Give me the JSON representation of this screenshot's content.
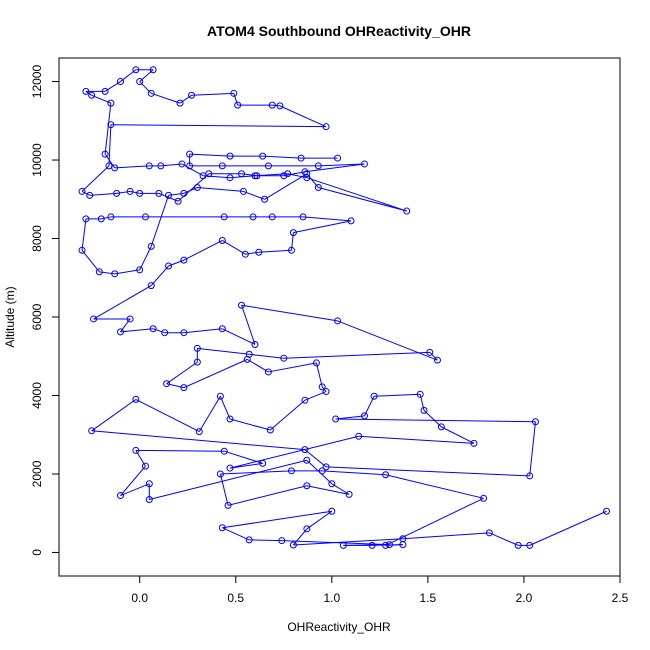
{
  "chart_data": {
    "type": "line",
    "title": "ATOM4 Southbound OHReactivity_OHR",
    "xlabel": "OHReactivity_OHR",
    "ylabel": "Altitude (m)",
    "xlim": [
      -0.42,
      2.5
    ],
    "ylim": [
      -600,
      12600
    ],
    "x_ticks": [
      {
        "value": 0.0,
        "label": "0.0"
      },
      {
        "value": 0.5,
        "label": "0.5"
      },
      {
        "value": 1.0,
        "label": "1.0"
      },
      {
        "value": 1.5,
        "label": "1.5"
      },
      {
        "value": 2.0,
        "label": "2.0"
      },
      {
        "value": 2.5,
        "label": "2.5"
      }
    ],
    "y_ticks": [
      {
        "value": 0,
        "label": "0"
      },
      {
        "value": 2000,
        "label": "2000"
      },
      {
        "value": 4000,
        "label": "4000"
      },
      {
        "value": 6000,
        "label": "6000"
      },
      {
        "value": 8000,
        "label": "8000"
      },
      {
        "value": 10000,
        "label": "10000"
      },
      {
        "value": 12000,
        "label": "12000"
      }
    ],
    "grid": false,
    "series_color": "#0000ff",
    "marker": "open-circle",
    "series": [
      {
        "points": [
          {
            "x": 2.43,
            "y": 1050
          },
          {
            "x": 2.03,
            "y": 180
          },
          {
            "x": 1.97,
            "y": 180
          },
          {
            "x": 1.82,
            "y": 500
          },
          {
            "x": 1.37,
            "y": 350
          },
          {
            "x": 0.8,
            "y": 190
          },
          {
            "x": 0.87,
            "y": 600
          },
          {
            "x": 1.0,
            "y": 1050
          },
          {
            "x": 0.43,
            "y": 630
          },
          {
            "x": 0.57,
            "y": 320
          },
          {
            "x": 0.74,
            "y": 300
          },
          {
            "x": 1.3,
            "y": 200
          },
          {
            "x": 1.06,
            "y": 180
          },
          {
            "x": 1.21,
            "y": 180
          },
          {
            "x": 1.37,
            "y": 200
          },
          {
            "x": 1.28,
            "y": 180
          },
          {
            "x": 1.79,
            "y": 1380
          },
          {
            "x": 1.28,
            "y": 1980
          },
          {
            "x": 0.95,
            "y": 2080
          },
          {
            "x": 0.79,
            "y": 2080
          },
          {
            "x": 0.42,
            "y": 2000
          },
          {
            "x": 0.46,
            "y": 1200
          },
          {
            "x": 0.87,
            "y": 1700
          },
          {
            "x": 1.09,
            "y": 1480
          },
          {
            "x": 1.0,
            "y": 1750
          },
          {
            "x": 0.87,
            "y": 2350
          },
          {
            "x": 0.05,
            "y": 1350
          },
          {
            "x": 0.05,
            "y": 1750
          },
          {
            "x": -0.1,
            "y": 1450
          },
          {
            "x": 0.03,
            "y": 2200
          },
          {
            "x": -0.02,
            "y": 2600
          },
          {
            "x": 0.44,
            "y": 2580
          },
          {
            "x": 0.64,
            "y": 2270
          },
          {
            "x": 0.47,
            "y": 2150
          },
          {
            "x": 1.14,
            "y": 2960
          },
          {
            "x": 1.74,
            "y": 2780
          },
          {
            "x": 1.57,
            "y": 3200
          },
          {
            "x": 1.48,
            "y": 3620
          },
          {
            "x": 1.46,
            "y": 4030
          },
          {
            "x": 1.22,
            "y": 3980
          },
          {
            "x": 1.17,
            "y": 3480
          },
          {
            "x": 1.02,
            "y": 3400
          },
          {
            "x": 2.06,
            "y": 3330
          },
          {
            "x": 2.03,
            "y": 1950
          },
          {
            "x": 0.97,
            "y": 2180
          },
          {
            "x": 0.86,
            "y": 2620
          },
          {
            "x": -0.25,
            "y": 3100
          },
          {
            "x": -0.02,
            "y": 3900
          },
          {
            "x": 0.31,
            "y": 3080
          },
          {
            "x": 0.42,
            "y": 3980
          },
          {
            "x": 0.47,
            "y": 3400
          },
          {
            "x": 0.68,
            "y": 3120
          },
          {
            "x": 0.86,
            "y": 3880
          },
          {
            "x": 0.97,
            "y": 4100
          },
          {
            "x": 0.95,
            "y": 4220
          },
          {
            "x": 0.92,
            "y": 4830
          },
          {
            "x": 0.67,
            "y": 4600
          },
          {
            "x": 0.56,
            "y": 4920
          },
          {
            "x": 0.23,
            "y": 4200
          },
          {
            "x": 0.14,
            "y": 4300
          },
          {
            "x": 0.3,
            "y": 4850
          },
          {
            "x": 0.3,
            "y": 5200
          },
          {
            "x": 0.57,
            "y": 5050
          },
          {
            "x": 0.75,
            "y": 4950
          },
          {
            "x": 1.51,
            "y": 5100
          },
          {
            "x": 1.55,
            "y": 4900
          },
          {
            "x": 1.03,
            "y": 5900
          },
          {
            "x": 0.53,
            "y": 6300
          },
          {
            "x": 0.6,
            "y": 5300
          },
          {
            "x": 0.43,
            "y": 5700
          },
          {
            "x": 0.23,
            "y": 5600
          },
          {
            "x": 0.13,
            "y": 5600
          },
          {
            "x": 0.07,
            "y": 5700
          },
          {
            "x": -0.1,
            "y": 5620
          },
          {
            "x": -0.05,
            "y": 5950
          },
          {
            "x": -0.24,
            "y": 5950
          },
          {
            "x": 0.06,
            "y": 6800
          },
          {
            "x": 0.15,
            "y": 7300
          },
          {
            "x": 0.23,
            "y": 7450
          },
          {
            "x": 0.43,
            "y": 7950
          },
          {
            "x": 0.55,
            "y": 7600
          },
          {
            "x": 0.62,
            "y": 7650
          },
          {
            "x": 0.79,
            "y": 7700
          },
          {
            "x": 0.8,
            "y": 8150
          },
          {
            "x": 1.1,
            "y": 8450
          },
          {
            "x": 0.85,
            "y": 8550
          },
          {
            "x": 0.69,
            "y": 8550
          },
          {
            "x": 0.59,
            "y": 8550
          },
          {
            "x": 0.44,
            "y": 8550
          },
          {
            "x": 0.03,
            "y": 8550
          },
          {
            "x": -0.15,
            "y": 8550
          },
          {
            "x": -0.2,
            "y": 8500
          },
          {
            "x": -0.28,
            "y": 8500
          },
          {
            "x": -0.3,
            "y": 7700
          },
          {
            "x": -0.21,
            "y": 7150
          },
          {
            "x": -0.13,
            "y": 7100
          },
          {
            "x": 0.0,
            "y": 7200
          },
          {
            "x": 0.06,
            "y": 7800
          },
          {
            "x": 0.15,
            "y": 9100
          },
          {
            "x": 0.23,
            "y": 9150
          },
          {
            "x": 0.3,
            "y": 9300
          },
          {
            "x": 0.54,
            "y": 9200
          },
          {
            "x": 0.65,
            "y": 9000
          },
          {
            "x": 0.87,
            "y": 9650
          },
          {
            "x": 0.93,
            "y": 9300
          },
          {
            "x": 1.39,
            "y": 8700
          },
          {
            "x": 0.87,
            "y": 9550
          },
          {
            "x": 0.77,
            "y": 9650
          },
          {
            "x": 0.6,
            "y": 9600
          },
          {
            "x": 0.47,
            "y": 9550
          },
          {
            "x": 0.33,
            "y": 9600
          },
          {
            "x": 0.22,
            "y": 9900
          },
          {
            "x": 0.11,
            "y": 9850
          },
          {
            "x": 0.05,
            "y": 9850
          },
          {
            "x": -0.13,
            "y": 9800
          },
          {
            "x": -0.18,
            "y": 10150
          },
          {
            "x": -0.15,
            "y": 11450
          },
          {
            "x": -0.25,
            "y": 11650
          },
          {
            "x": -0.28,
            "y": 11750
          },
          {
            "x": -0.18,
            "y": 11750
          },
          {
            "x": -0.1,
            "y": 12000
          },
          {
            "x": -0.02,
            "y": 12300
          },
          {
            "x": 0.07,
            "y": 12300
          },
          {
            "x": 0.0,
            "y": 12000
          },
          {
            "x": 0.06,
            "y": 11700
          },
          {
            "x": 0.21,
            "y": 11450
          },
          {
            "x": 0.27,
            "y": 11650
          },
          {
            "x": 0.49,
            "y": 11700
          },
          {
            "x": 0.51,
            "y": 11400
          },
          {
            "x": 0.69,
            "y": 11400
          },
          {
            "x": 0.73,
            "y": 11380
          },
          {
            "x": 0.97,
            "y": 10850
          },
          {
            "x": -0.15,
            "y": 10900
          },
          {
            "x": -0.16,
            "y": 9850
          },
          {
            "x": -0.3,
            "y": 9200
          },
          {
            "x": -0.26,
            "y": 9100
          },
          {
            "x": -0.12,
            "y": 9150
          },
          {
            "x": -0.05,
            "y": 9200
          },
          {
            "x": 0.0,
            "y": 9150
          },
          {
            "x": 0.1,
            "y": 9150
          },
          {
            "x": 0.2,
            "y": 8950
          },
          {
            "x": 0.36,
            "y": 9650
          },
          {
            "x": 0.53,
            "y": 9650
          },
          {
            "x": 0.61,
            "y": 9600
          },
          {
            "x": 0.75,
            "y": 9600
          },
          {
            "x": 0.86,
            "y": 9700
          },
          {
            "x": 1.17,
            "y": 9900
          },
          {
            "x": 0.93,
            "y": 9850
          },
          {
            "x": 0.67,
            "y": 9850
          },
          {
            "x": 0.43,
            "y": 9850
          },
          {
            "x": 0.26,
            "y": 9850
          },
          {
            "x": 0.26,
            "y": 10150
          },
          {
            "x": 0.47,
            "y": 10100
          },
          {
            "x": 0.64,
            "y": 10100
          },
          {
            "x": 0.84,
            "y": 10050
          },
          {
            "x": 1.03,
            "y": 10050
          }
        ]
      }
    ]
  }
}
